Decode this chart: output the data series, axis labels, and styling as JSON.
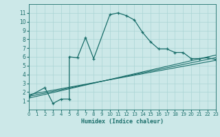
{
  "xlabel": "Humidex (Indice chaleur)",
  "bg_color": "#cce8e8",
  "line_color": "#1a6e6a",
  "xlim": [
    0,
    23
  ],
  "ylim": [
    0,
    12
  ],
  "xticks": [
    0,
    1,
    2,
    3,
    4,
    5,
    6,
    7,
    8,
    9,
    10,
    11,
    12,
    13,
    14,
    15,
    16,
    17,
    18,
    19,
    20,
    21,
    22,
    23
  ],
  "yticks": [
    1,
    2,
    3,
    4,
    5,
    6,
    7,
    8,
    9,
    10,
    11
  ],
  "curve1_x": [
    0,
    2,
    3,
    4,
    5,
    5,
    6,
    7,
    8,
    10,
    11,
    12,
    13,
    14,
    15,
    16,
    17,
    18,
    19,
    20,
    21,
    22,
    23
  ],
  "curve1_y": [
    1.5,
    2.5,
    0.7,
    1.2,
    1.2,
    6.0,
    5.9,
    8.2,
    5.8,
    10.8,
    11.0,
    10.7,
    10.2,
    8.8,
    7.7,
    6.9,
    6.9,
    6.5,
    6.5,
    5.8,
    5.8,
    5.9,
    5.7
  ],
  "line1_x": [
    0,
    23
  ],
  "line1_y": [
    1.3,
    6.2
  ],
  "line2_x": [
    0,
    23
  ],
  "line2_y": [
    1.5,
    5.9
  ],
  "line3_x": [
    0,
    23
  ],
  "line3_y": [
    1.7,
    5.6
  ],
  "grid_color": "#aad4d4"
}
